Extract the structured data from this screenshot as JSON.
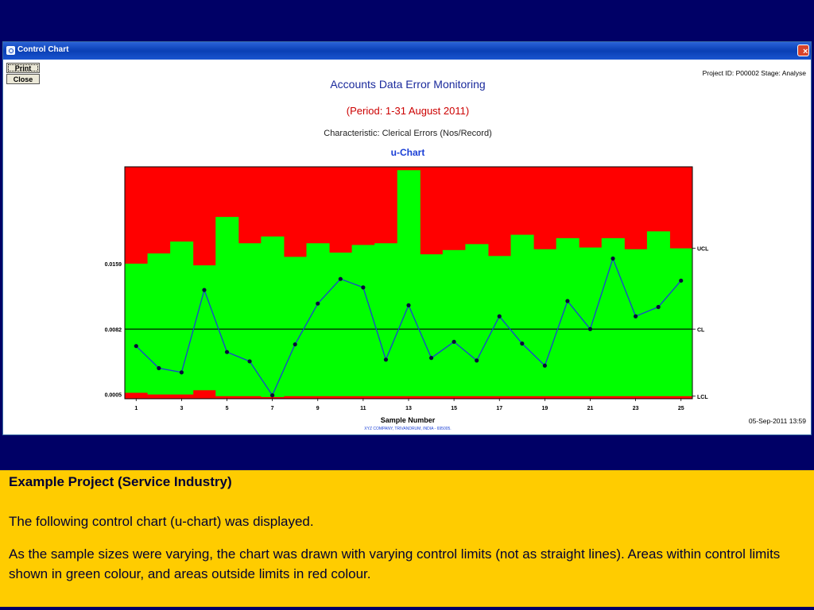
{
  "window": {
    "title": "Control Chart",
    "close_glyph": "×",
    "print_label": "Print",
    "close_label": "Close",
    "project_info": "Project ID: P00002  Stage: Analyse",
    "date_stamp": "05-Sep-2011 13:59"
  },
  "chart_data": {
    "type": "line",
    "title": "Accounts Data Error Monitoring",
    "period": "(Period: 1-31 August 2011)",
    "characteristic": "Characteristic: Clerical Errors (Nos/Record)",
    "subtitle": "u-Chart",
    "xlabel": "Sample Number",
    "footer_note": "XYZ COMPANY, TRIVANDRUM, INDIA - 695005.",
    "ylim": [
      0.0,
      0.0273
    ],
    "xlim": [
      0.5,
      25.5
    ],
    "x": [
      1,
      2,
      3,
      4,
      5,
      6,
      7,
      8,
      9,
      10,
      11,
      12,
      13,
      14,
      15,
      16,
      17,
      18,
      19,
      20,
      21,
      22,
      23,
      24,
      25
    ],
    "x_tick_labels": [
      "1",
      "3",
      "5",
      "7",
      "9",
      "11",
      "13",
      "15",
      "17",
      "19",
      "21",
      "23",
      "25"
    ],
    "x_tick_values": [
      1,
      3,
      5,
      7,
      9,
      11,
      13,
      15,
      17,
      19,
      21,
      23,
      25
    ],
    "y_tick_labels": [
      "0.0159",
      "0.0082",
      "0.0005"
    ],
    "y_tick_values": [
      0.0159,
      0.0082,
      0.0005
    ],
    "center_line": 0.0082,
    "limit_labels": {
      "ucl": "UCL",
      "cl": "CL",
      "lcl": "LCL"
    },
    "u_values": [
      0.0062,
      0.0036,
      0.0031,
      0.0128,
      0.0055,
      0.0044,
      0.0004,
      0.0064,
      0.0112,
      0.0141,
      0.0131,
      0.0046,
      0.011,
      0.0048,
      0.0067,
      0.0045,
      0.0097,
      0.0065,
      0.0039,
      0.0115,
      0.0082,
      0.0165,
      0.0097,
      0.0108,
      0.0139
    ],
    "ucl_values": [
      0.0159,
      0.0171,
      0.0185,
      0.0157,
      0.0214,
      0.0183,
      0.0191,
      0.0167,
      0.0183,
      0.0172,
      0.0181,
      0.0183,
      0.0269,
      0.017,
      0.0175,
      0.0182,
      0.0168,
      0.0193,
      0.0176,
      0.0189,
      0.0178,
      0.0189,
      0.0176,
      0.0197,
      0.0177
    ],
    "lcl_values": [
      0.0007,
      0.0005,
      0.0005,
      0.001,
      0.0003,
      0.0003,
      0.0002,
      0.0003,
      0.0003,
      0.0003,
      0.0003,
      0.0003,
      0.0003,
      0.0003,
      0.0003,
      0.0003,
      0.0003,
      0.0003,
      0.0003,
      0.0003,
      0.0003,
      0.0003,
      0.0003,
      0.0003,
      0.0003
    ],
    "colors": {
      "out_of_limits": "#ff0000",
      "within_limits": "#00ff00",
      "line": "#1a3fd6",
      "point": "#0a0a3a",
      "center": "#000000"
    },
    "grid": false,
    "legend": "none"
  },
  "caption": {
    "title": "Example Project (Service Industry)",
    "line1": "The following control chart (u-chart) was displayed.",
    "line2": "As the sample sizes were varying, the chart was drawn with varying control limits (not as straight lines).  Areas within control limits shown in green colour, and areas outside limits in red colour."
  }
}
